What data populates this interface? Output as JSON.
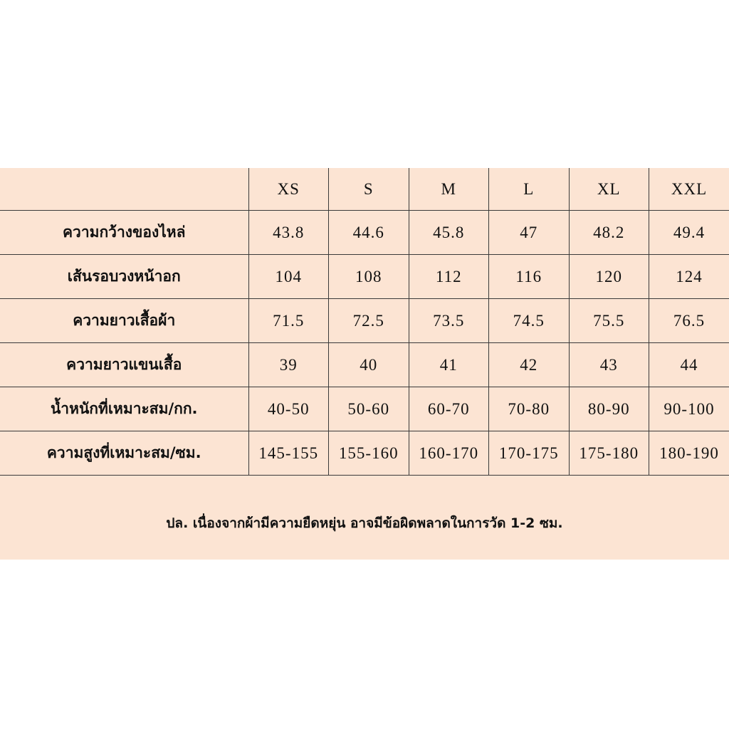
{
  "sizes": [
    "XS",
    "S",
    "M",
    "L",
    "XL",
    "XXL"
  ],
  "rows": [
    {
      "label": "ความกว้างของไหล่",
      "values": [
        "43.8",
        "44.6",
        "45.8",
        "47",
        "48.2",
        "49.4"
      ]
    },
    {
      "label": "เส้นรอบวงหน้าอก",
      "values": [
        "104",
        "108",
        "112",
        "116",
        "120",
        "124"
      ]
    },
    {
      "label": "ความยาวเสื้อผ้า",
      "values": [
        "71.5",
        "72.5",
        "73.5",
        "74.5",
        "75.5",
        "76.5"
      ]
    },
    {
      "label": "ความยาวแขนเสื้อ",
      "values": [
        "39",
        "40",
        "41",
        "42",
        "43",
        "44"
      ]
    },
    {
      "label": "น้ำหนักที่เหมาะสม/กก.",
      "values": [
        "40-50",
        "50-60",
        "60-70",
        "70-80",
        "80-90",
        "90-100"
      ]
    },
    {
      "label": "ความสูงที่เหมาะสม/ซม.",
      "values": [
        "145-155",
        "155-160",
        "160-170",
        "170-175",
        "175-180",
        "180-190"
      ]
    }
  ],
  "note": "ปล.  เนื่องจากผ้ามีความยืดหยุ่น อาจมีข้อผิดพลาดในการวัด 1-2 ซม.",
  "colors": {
    "background": "#fce4d3",
    "grid": "#3a3a3a"
  }
}
